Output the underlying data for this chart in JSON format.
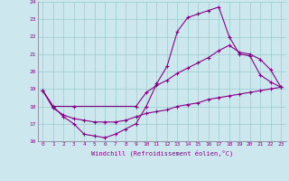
{
  "xlabel": "Windchill (Refroidissement éolien,°C)",
  "background_color": "#cce8ee",
  "line_color": "#880088",
  "grid_color": "#99cccc",
  "xlim": [
    -0.5,
    23.5
  ],
  "ylim": [
    16,
    24
  ],
  "yticks": [
    16,
    17,
    18,
    19,
    20,
    21,
    22,
    23,
    24
  ],
  "xticks": [
    0,
    1,
    2,
    3,
    4,
    5,
    6,
    7,
    8,
    9,
    10,
    11,
    12,
    13,
    14,
    15,
    16,
    17,
    18,
    19,
    20,
    21,
    22,
    23
  ],
  "series": [
    {
      "x": [
        0,
        1,
        2,
        3,
        4,
        5,
        6,
        7,
        8,
        9,
        10,
        11,
        12,
        13,
        14,
        15,
        16,
        17,
        18,
        19,
        20,
        21,
        22,
        23
      ],
      "y": [
        18.9,
        17.9,
        17.5,
        17.3,
        17.2,
        17.1,
        17.1,
        17.1,
        17.2,
        17.4,
        17.6,
        17.7,
        17.8,
        18.0,
        18.1,
        18.2,
        18.4,
        18.5,
        18.6,
        18.7,
        18.8,
        18.9,
        19.0,
        19.1
      ]
    },
    {
      "x": [
        0,
        1,
        3,
        9,
        10,
        11,
        12,
        13,
        14,
        15,
        16,
        17,
        18,
        19,
        20,
        21,
        22,
        23
      ],
      "y": [
        18.9,
        18.0,
        18.0,
        18.0,
        18.8,
        19.2,
        19.5,
        19.9,
        20.2,
        20.5,
        20.8,
        21.2,
        21.5,
        21.1,
        21.0,
        20.7,
        20.1,
        19.1
      ]
    },
    {
      "x": [
        0,
        1,
        2,
        3,
        4,
        5,
        6,
        7,
        8,
        9,
        10,
        11,
        12,
        13,
        14,
        15,
        16,
        17,
        18,
        19,
        20,
        21,
        22,
        23
      ],
      "y": [
        18.9,
        18.0,
        17.4,
        17.0,
        16.4,
        16.3,
        16.2,
        16.4,
        16.7,
        17.0,
        18.0,
        19.3,
        20.3,
        22.3,
        23.1,
        23.3,
        23.5,
        23.7,
        22.0,
        21.0,
        20.9,
        19.8,
        19.4,
        19.1
      ]
    }
  ]
}
